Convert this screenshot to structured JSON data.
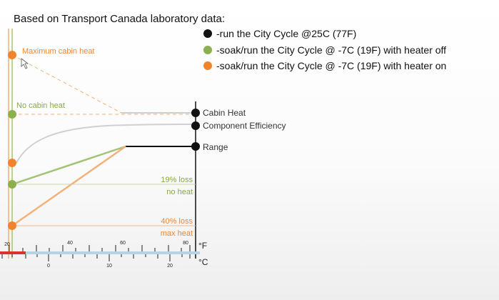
{
  "heading": "Based on Transport Canada laboratory data:",
  "legend": [
    {
      "label": "-run the City Cycle @25C (77F)",
      "color": "#111111"
    },
    {
      "label": "-soak/run the City Cycle @ -7C (19F) with heater off",
      "color": "#8db04e"
    },
    {
      "label": "-soak/run the City Cycle @ -7C (19F) with heater on",
      "color": "#f0842c"
    }
  ],
  "diagram": {
    "max_heat_label": "Maximum cabin heat",
    "no_heat_label": "No cabin heat",
    "right_labels": [
      "Cabin Heat",
      "Component Efficiency",
      "Range"
    ],
    "loss_19": {
      "line1": "19% loss",
      "line2": "no heat"
    },
    "loss_40": {
      "line1": "40% loss",
      "line2": "max heat"
    },
    "axis_f": {
      "ticks": [
        "20",
        "40",
        "60",
        "80"
      ],
      "unit": "°F"
    },
    "axis_c": {
      "ticks": [
        "0",
        "10",
        "20"
      ],
      "unit": "°C"
    }
  },
  "colors": {
    "orange": "#f0842c",
    "green": "#8db04e",
    "black": "#111111",
    "gray": "#cfcfcf",
    "axis_blue": "#b6d4e6",
    "red_mark": "#d9342b"
  }
}
